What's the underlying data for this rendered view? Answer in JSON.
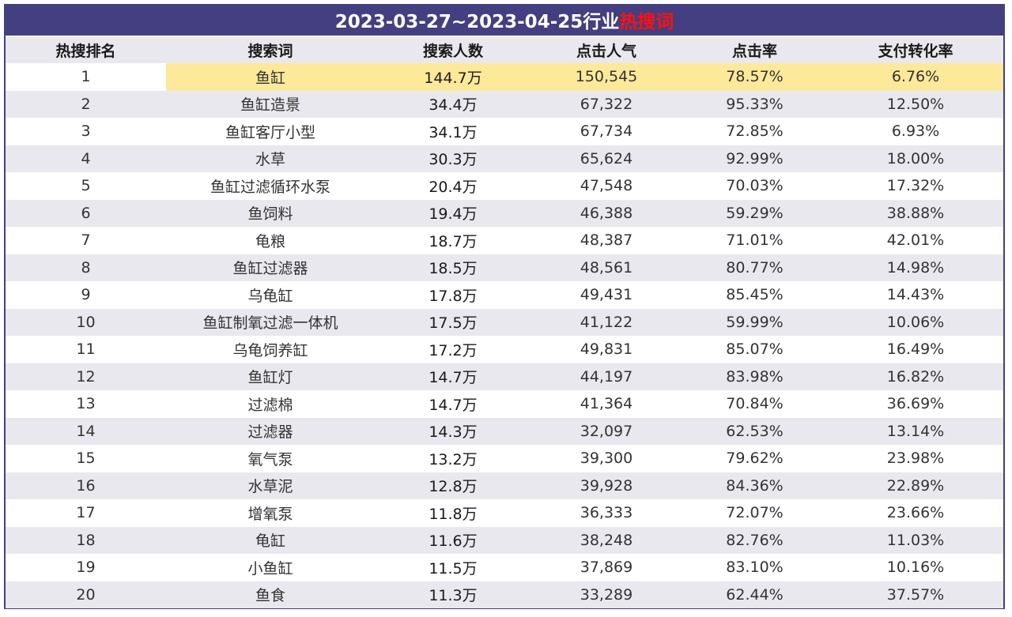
{
  "title": {
    "prefix": "2023-03-27~2023-04-25行业",
    "highlight": "热搜词"
  },
  "colors": {
    "header_bar": "#433f80",
    "title_highlight": "#ff1010",
    "row_highlight": "#fde99a",
    "row_alt": "#e8e8ee"
  },
  "chart_data": {
    "type": "table",
    "columns": [
      "热搜排名",
      "搜索词",
      "搜索人数",
      "点击人气",
      "点击率",
      "支付转化率"
    ],
    "highlighted_row": 1,
    "rows": [
      [
        "1",
        "鱼缸",
        "144.7万",
        "150,545",
        "78.57%",
        "6.76%"
      ],
      [
        "2",
        "鱼缸造景",
        "34.4万",
        "67,322",
        "95.33%",
        "12.50%"
      ],
      [
        "3",
        "鱼缸客厅小型",
        "34.1万",
        "67,734",
        "72.85%",
        "6.93%"
      ],
      [
        "4",
        "水草",
        "30.3万",
        "65,624",
        "92.99%",
        "18.00%"
      ],
      [
        "5",
        "鱼缸过滤循环水泵",
        "20.4万",
        "47,548",
        "70.03%",
        "17.32%"
      ],
      [
        "6",
        "鱼饲料",
        "19.4万",
        "46,388",
        "59.29%",
        "38.88%"
      ],
      [
        "7",
        "龟粮",
        "18.7万",
        "48,387",
        "71.01%",
        "42.01%"
      ],
      [
        "8",
        "鱼缸过滤器",
        "18.5万",
        "48,561",
        "80.77%",
        "14.98%"
      ],
      [
        "9",
        "乌龟缸",
        "17.8万",
        "49,431",
        "85.45%",
        "14.43%"
      ],
      [
        "10",
        "鱼缸制氧过滤一体机",
        "17.5万",
        "41,122",
        "59.99%",
        "10.06%"
      ],
      [
        "11",
        "乌龟饲养缸",
        "17.2万",
        "49,831",
        "85.07%",
        "16.49%"
      ],
      [
        "12",
        "鱼缸灯",
        "14.7万",
        "44,197",
        "83.98%",
        "16.82%"
      ],
      [
        "13",
        "过滤棉",
        "14.7万",
        "41,364",
        "70.84%",
        "36.69%"
      ],
      [
        "14",
        "过滤器",
        "14.3万",
        "32,097",
        "62.53%",
        "13.14%"
      ],
      [
        "15",
        "氧气泵",
        "13.2万",
        "39,300",
        "79.62%",
        "23.98%"
      ],
      [
        "16",
        "水草泥",
        "12.8万",
        "39,928",
        "84.36%",
        "22.89%"
      ],
      [
        "17",
        "增氧泵",
        "11.8万",
        "36,333",
        "72.07%",
        "23.66%"
      ],
      [
        "18",
        "龟缸",
        "11.6万",
        "38,248",
        "82.76%",
        "11.03%"
      ],
      [
        "19",
        "小鱼缸",
        "11.5万",
        "37,869",
        "83.10%",
        "10.16%"
      ],
      [
        "20",
        "鱼食",
        "11.3万",
        "33,289",
        "62.44%",
        "37.57%"
      ]
    ]
  }
}
